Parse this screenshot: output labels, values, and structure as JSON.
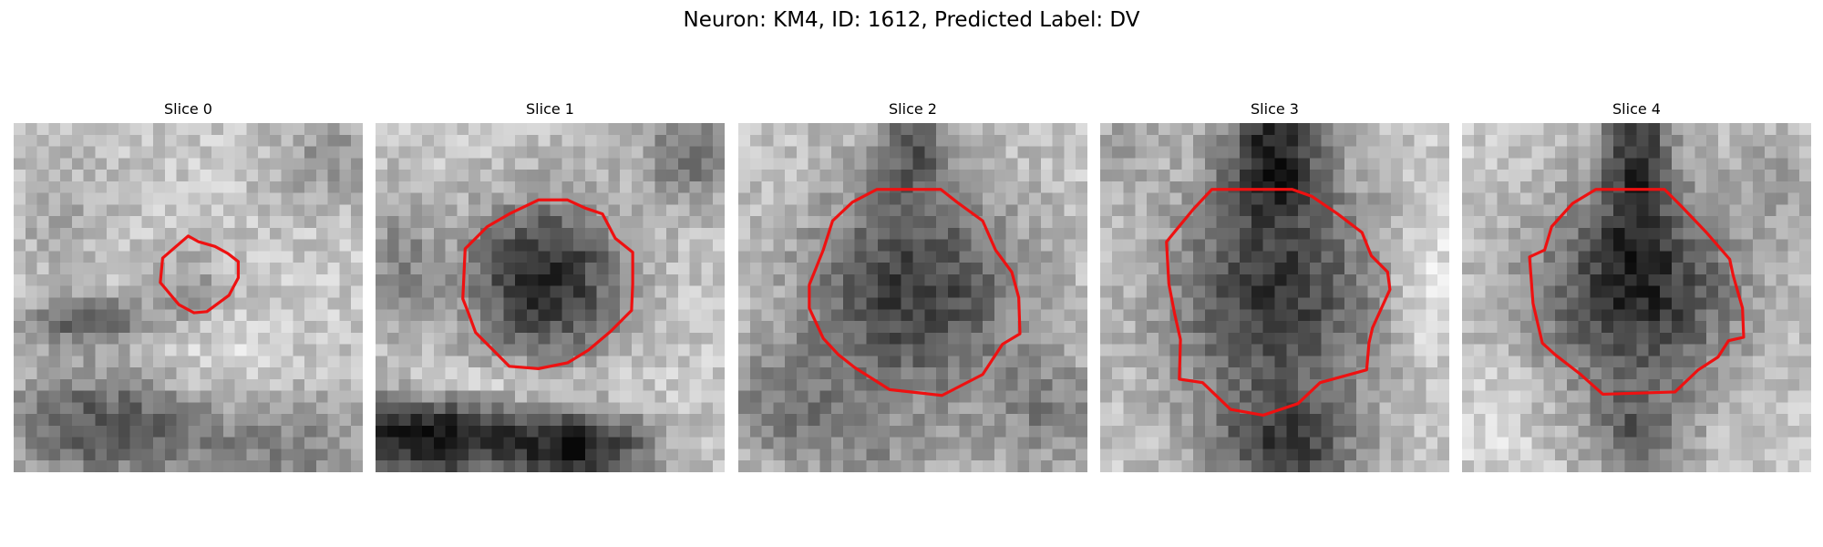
{
  "figure": {
    "title": "Neuron: KM4, ID: 1612, Predicted Label: DV"
  },
  "colors": {
    "contour": "#ee1111",
    "background": "#ffffff"
  },
  "panels": [
    {
      "title": "Slice 0"
    },
    {
      "title": "Slice 1"
    },
    {
      "title": "Slice 2"
    },
    {
      "title": "Slice 3"
    },
    {
      "title": "Slice 4"
    }
  ]
}
